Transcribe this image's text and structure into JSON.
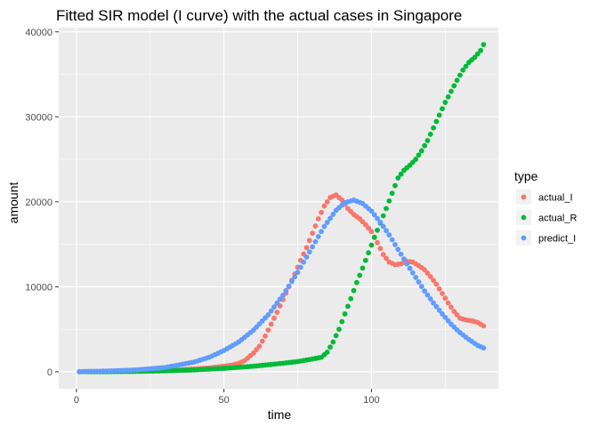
{
  "chart_data": {
    "type": "scatter",
    "title": "Fitted SIR model (I curve) with the actual cases in Singapore",
    "xlabel": "time",
    "ylabel": "amount",
    "xlim": [
      -6,
      143
    ],
    "ylim": [
      -2000,
      40500
    ],
    "x_ticks": [
      0,
      50,
      100
    ],
    "x_tick_labels": [
      "0",
      "50",
      "100"
    ],
    "y_ticks": [
      0,
      10000,
      20000,
      30000,
      40000
    ],
    "y_tick_labels": [
      "0",
      "10000",
      "20000",
      "30000",
      "40000"
    ],
    "grid": true,
    "panel_background": "#ebebeb",
    "legend": {
      "title": "type",
      "placement": "right"
    },
    "series": [
      {
        "name": "actual_I",
        "color": "#F8766D",
        "points": [
          [
            1,
            0
          ],
          [
            10,
            20
          ],
          [
            20,
            60
          ],
          [
            30,
            140
          ],
          [
            40,
            330
          ],
          [
            45,
            450
          ],
          [
            50,
            650
          ],
          [
            53,
            800
          ],
          [
            55,
            1000
          ],
          [
            57,
            1300
          ],
          [
            60,
            2200
          ],
          [
            62,
            3000
          ],
          [
            64,
            4200
          ],
          [
            66,
            5600
          ],
          [
            68,
            7000
          ],
          [
            70,
            8500
          ],
          [
            72,
            10000
          ],
          [
            74,
            11500
          ],
          [
            76,
            13100
          ],
          [
            78,
            14600
          ],
          [
            80,
            16300
          ],
          [
            82,
            18000
          ],
          [
            84,
            19500
          ],
          [
            86,
            20500
          ],
          [
            88,
            20800
          ],
          [
            90,
            20200
          ],
          [
            92,
            19200
          ],
          [
            94,
            18500
          ],
          [
            96,
            18000
          ],
          [
            98,
            17300
          ],
          [
            100,
            16500
          ],
          [
            102,
            15200
          ],
          [
            104,
            13800
          ],
          [
            106,
            12900
          ],
          [
            108,
            12600
          ],
          [
            110,
            12700
          ],
          [
            112,
            13000
          ],
          [
            114,
            12900
          ],
          [
            116,
            12500
          ],
          [
            118,
            12000
          ],
          [
            120,
            11200
          ],
          [
            122,
            10300
          ],
          [
            124,
            9200
          ],
          [
            126,
            8100
          ],
          [
            128,
            7100
          ],
          [
            130,
            6300
          ],
          [
            132,
            6100
          ],
          [
            134,
            6000
          ],
          [
            136,
            5800
          ],
          [
            138,
            5400
          ]
        ]
      },
      {
        "name": "actual_R",
        "color": "#00BA38",
        "points": [
          [
            1,
            0
          ],
          [
            10,
            10
          ],
          [
            20,
            40
          ],
          [
            30,
            100
          ],
          [
            40,
            220
          ],
          [
            50,
            400
          ],
          [
            60,
            650
          ],
          [
            70,
            1000
          ],
          [
            75,
            1200
          ],
          [
            80,
            1500
          ],
          [
            83,
            1700
          ],
          [
            85,
            2300
          ],
          [
            87,
            3500
          ],
          [
            89,
            5000
          ],
          [
            91,
            6800
          ],
          [
            93,
            8600
          ],
          [
            95,
            10500
          ],
          [
            97,
            12200
          ],
          [
            99,
            14000
          ],
          [
            101,
            15800
          ],
          [
            103,
            17500
          ],
          [
            105,
            19200
          ],
          [
            107,
            21000
          ],
          [
            109,
            22800
          ],
          [
            111,
            23700
          ],
          [
            113,
            24300
          ],
          [
            115,
            25000
          ],
          [
            117,
            26000
          ],
          [
            119,
            27200
          ],
          [
            121,
            28700
          ],
          [
            123,
            30200
          ],
          [
            125,
            31700
          ],
          [
            127,
            33000
          ],
          [
            129,
            34300
          ],
          [
            131,
            35500
          ],
          [
            133,
            36400
          ],
          [
            135,
            37000
          ],
          [
            137,
            37800
          ],
          [
            138,
            38500
          ]
        ]
      },
      {
        "name": "predict_I",
        "color": "#619CFF",
        "points": [
          [
            1,
            20
          ],
          [
            10,
            80
          ],
          [
            20,
            210
          ],
          [
            30,
            500
          ],
          [
            40,
            1150
          ],
          [
            45,
            1700
          ],
          [
            50,
            2500
          ],
          [
            55,
            3500
          ],
          [
            60,
            4900
          ],
          [
            65,
            6700
          ],
          [
            70,
            9000
          ],
          [
            75,
            11700
          ],
          [
            80,
            14700
          ],
          [
            84,
            17100
          ],
          [
            88,
            19000
          ],
          [
            91,
            19900
          ],
          [
            94,
            20200
          ],
          [
            97,
            19800
          ],
          [
            100,
            18900
          ],
          [
            103,
            17600
          ],
          [
            106,
            16100
          ],
          [
            109,
            14400
          ],
          [
            112,
            12700
          ],
          [
            115,
            11100
          ],
          [
            118,
            9500
          ],
          [
            121,
            8100
          ],
          [
            124,
            6800
          ],
          [
            127,
            5600
          ],
          [
            130,
            4600
          ],
          [
            133,
            3800
          ],
          [
            136,
            3100
          ],
          [
            138,
            2800
          ]
        ]
      }
    ]
  }
}
